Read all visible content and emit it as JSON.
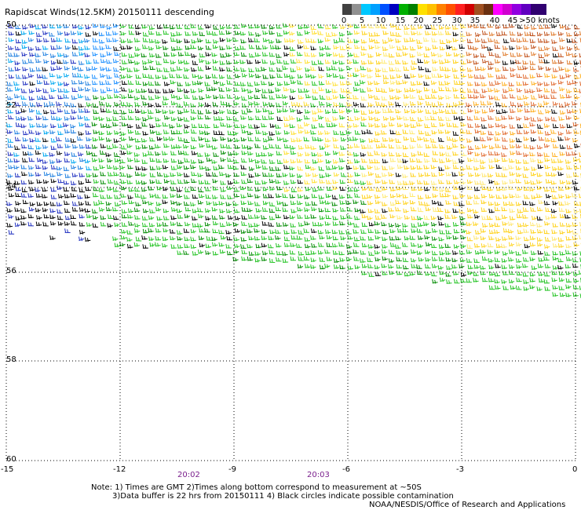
{
  "title": "Rapidscat Winds(12.5KM) 20150111 descending",
  "scale": {
    "labels": [
      "0",
      "5",
      "10",
      "15",
      "20",
      "25",
      "30",
      "35",
      "40",
      "45",
      ">50 knots"
    ],
    "colors": [
      "#404040",
      "#8c8c8c",
      "#00c8ff",
      "#0090ff",
      "#00b000",
      "#22dd00",
      "#ffd400",
      "#ffa000",
      "#ff5000",
      "#e00000",
      "#8b2500",
      "#c07000",
      "#ff00ff",
      "#b000ff",
      "#6000c0",
      "#3a0080"
    ]
  },
  "map": {
    "x_ticks": [
      "-15",
      "-12",
      "-9",
      "-6",
      "-3",
      "0"
    ],
    "y_ticks": [
      "50",
      "52",
      "54",
      "56",
      "58",
      "60"
    ]
  },
  "times": [
    "20:02",
    "20:03"
  ],
  "notes": {
    "line1": "Note: 1) Times are GMT 2)Times along bottom correspond to measurement at ~50S",
    "line2": "3)Data buffer is 22 hrs from 20150111 4) Black circles indicate possible contamination",
    "credit": "NOAA/NESDIS/Office of Research and Applications"
  }
}
